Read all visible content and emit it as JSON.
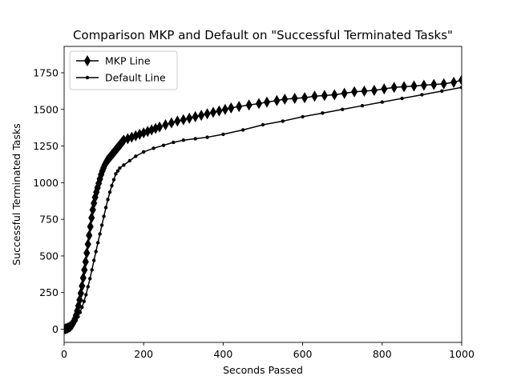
{
  "chart_data": {
    "type": "line",
    "title": "Comparison MKP and Default on \"Successful Terminated Tasks\"",
    "xlabel": "Seconds Passed",
    "ylabel": "Successful Terminated Tasks",
    "xlim": [
      0,
      1000
    ],
    "ylim": [
      -90,
      1930
    ],
    "xticks": [
      0,
      200,
      400,
      600,
      800,
      1000
    ],
    "xtick_labels": [
      "0",
      "200",
      "400",
      "600",
      "800",
      "1000"
    ],
    "yticks": [
      0,
      250,
      500,
      750,
      1000,
      1250,
      1500,
      1750
    ],
    "ytick_labels": [
      "0",
      "250",
      "500",
      "750",
      "1000",
      "1250",
      "1500",
      "1750"
    ],
    "grid": false,
    "legend_position": "top-left",
    "series": [
      {
        "name": "MKP Line",
        "color": "#000000",
        "marker": "thin_diamond",
        "x": [
          0,
          3,
          6,
          9,
          12,
          15,
          18,
          21,
          24,
          27,
          30,
          33,
          36,
          39,
          42,
          45,
          48,
          51,
          54,
          57,
          60,
          63,
          66,
          69,
          72,
          75,
          78,
          81,
          84,
          87,
          90,
          93,
          96,
          99,
          102,
          105,
          108,
          111,
          114,
          117,
          120,
          123,
          126,
          129,
          132,
          135,
          138,
          141,
          144,
          147,
          150,
          160,
          170,
          180,
          190,
          200,
          210,
          220,
          230,
          240,
          255,
          270,
          285,
          300,
          315,
          330,
          345,
          360,
          375,
          390,
          405,
          420,
          440,
          465,
          490,
          510,
          535,
          555,
          580,
          605,
          630,
          655,
          680,
          705,
          730,
          755,
          780,
          805,
          830,
          855,
          880,
          905,
          930,
          955,
          980,
          1000
        ],
        "y": [
          0,
          2,
          5,
          8,
          12,
          18,
          25,
          35,
          50,
          70,
          95,
          125,
          160,
          200,
          245,
          295,
          350,
          405,
          460,
          520,
          580,
          640,
          700,
          760,
          815,
          860,
          900,
          935,
          965,
          995,
          1025,
          1055,
          1080,
          1100,
          1120,
          1135,
          1150,
          1160,
          1170,
          1180,
          1190,
          1200,
          1210,
          1220,
          1230,
          1240,
          1250,
          1260,
          1270,
          1280,
          1290,
          1300,
          1310,
          1320,
          1330,
          1340,
          1350,
          1360,
          1370,
          1380,
          1395,
          1408,
          1420,
          1430,
          1440,
          1450,
          1460,
          1470,
          1480,
          1490,
          1500,
          1510,
          1520,
          1530,
          1540,
          1550,
          1560,
          1570,
          1575,
          1580,
          1590,
          1595,
          1600,
          1610,
          1620,
          1625,
          1630,
          1640,
          1650,
          1655,
          1660,
          1665,
          1670,
          1675,
          1685,
          1700
        ]
      },
      {
        "name": "Default Line",
        "color": "#000000",
        "marker": "point",
        "x": [
          0,
          5,
          10,
          15,
          20,
          25,
          30,
          35,
          40,
          45,
          50,
          55,
          60,
          65,
          70,
          75,
          80,
          85,
          90,
          95,
          100,
          105,
          110,
          115,
          120,
          125,
          130,
          135,
          140,
          150,
          165,
          180,
          200,
          225,
          250,
          275,
          300,
          330,
          360,
          400,
          450,
          500,
          550,
          600,
          650,
          700,
          750,
          800,
          850,
          900,
          950,
          1000
        ],
        "y": [
          0,
          3,
          8,
          15,
          25,
          40,
          60,
          85,
          115,
          150,
          190,
          235,
          290,
          345,
          405,
          470,
          530,
          590,
          650,
          710,
          770,
          830,
          885,
          935,
          980,
          1020,
          1060,
          1080,
          1100,
          1120,
          1150,
          1180,
          1210,
          1235,
          1255,
          1275,
          1290,
          1300,
          1310,
          1330,
          1360,
          1395,
          1420,
          1450,
          1475,
          1500,
          1525,
          1550,
          1575,
          1600,
          1625,
          1650
        ]
      }
    ]
  }
}
